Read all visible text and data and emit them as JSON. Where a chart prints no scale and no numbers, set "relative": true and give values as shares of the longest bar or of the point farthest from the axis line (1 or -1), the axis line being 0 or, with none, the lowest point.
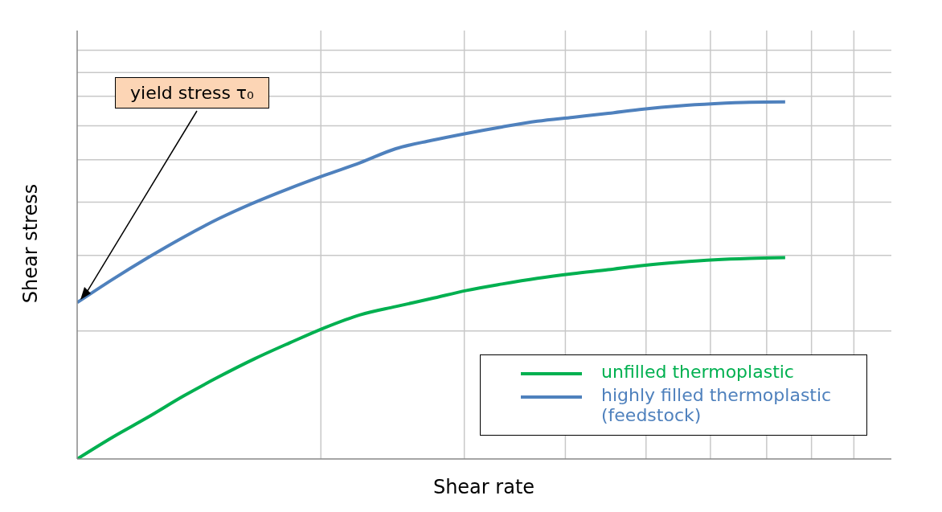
{
  "chart_data": {
    "type": "line",
    "relative": true,
    "xlabel": "Shear rate",
    "ylabel": "Shear stress",
    "categories": [
      null,
      null,
      null,
      null,
      null,
      null,
      null,
      null,
      null,
      null,
      null,
      null,
      null,
      null,
      null,
      null,
      null,
      null,
      null,
      null,
      null,
      null,
      null,
      null
    ],
    "series": [
      {
        "name": "unfilled thermoplastic",
        "color": "#00b050",
        "values": [
          0,
          0.061,
          0.117,
          0.176,
          0.23,
          0.28,
          0.325,
          0.368,
          0.404,
          0.427,
          0.449,
          0.472,
          0.49,
          0.506,
          0.519,
          0.53,
          0.542,
          0.551,
          0.558,
          0.562,
          0.564,
          null,
          null,
          null
        ]
      },
      {
        "name": "highly filled thermoplastic (feedstock)",
        "color": "#4f81bd",
        "values": [
          0.438,
          0.503,
          0.564,
          0.621,
          0.673,
          0.718,
          0.758,
          0.795,
          0.83,
          0.869,
          0.892,
          0.912,
          0.93,
          0.946,
          0.957,
          0.968,
          0.98,
          0.989,
          0.995,
          0.999,
          1,
          null,
          null,
          null
        ]
      }
    ],
    "annotations": [
      "yield stress τ₀"
    ],
    "grid": true,
    "legend": "bottom right",
    "marker": "none",
    "line_style": "solid"
  }
}
